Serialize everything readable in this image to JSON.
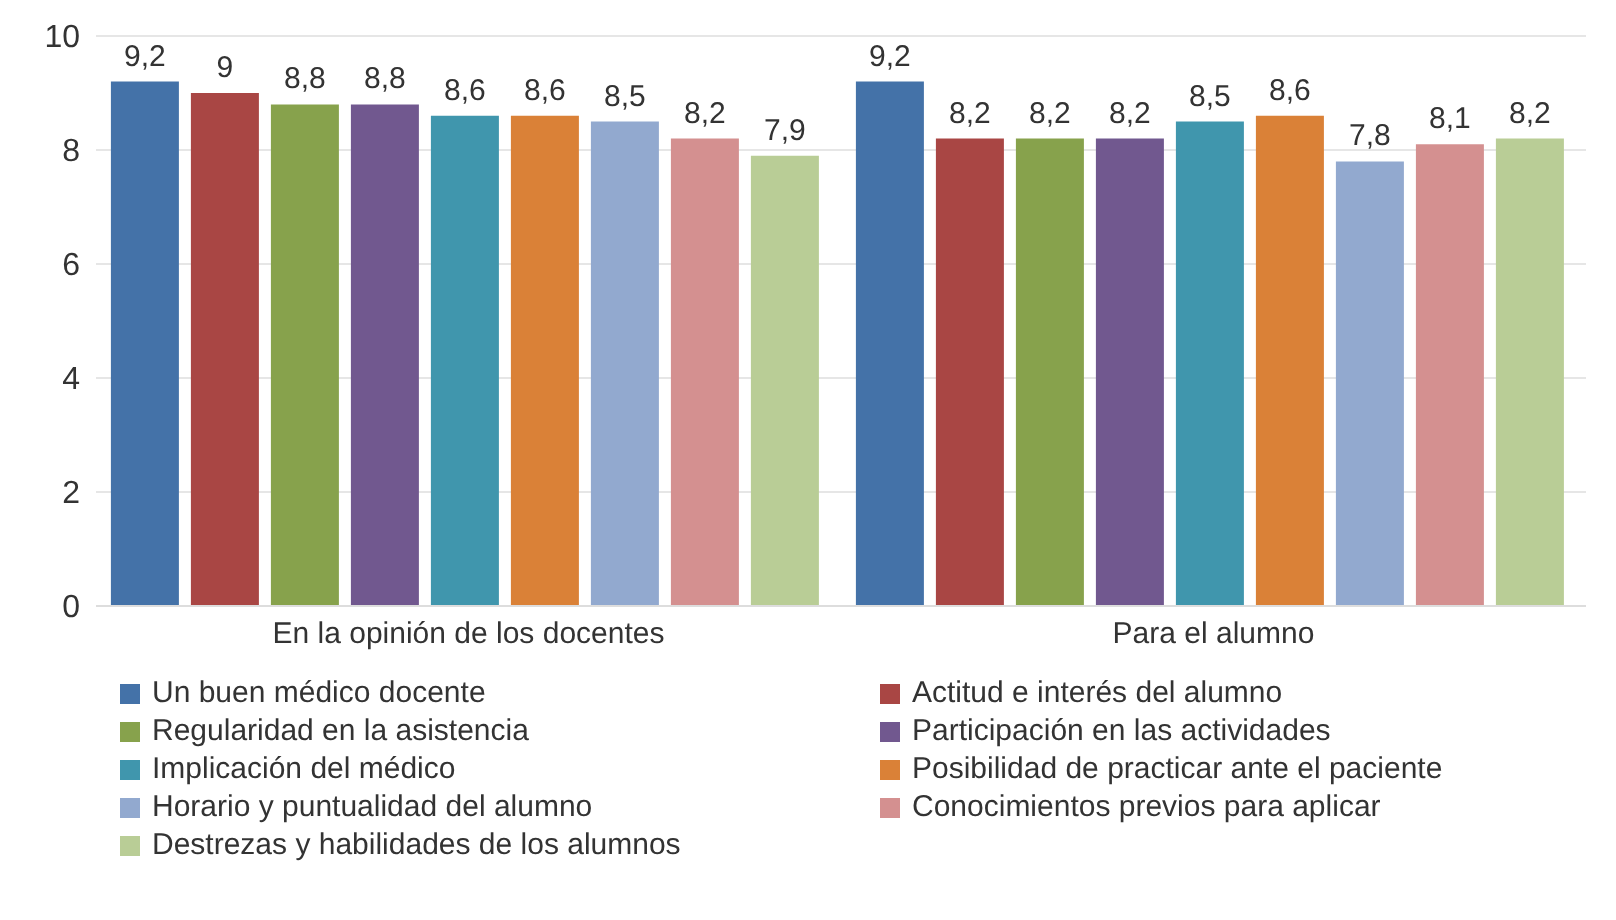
{
  "chart_data": {
    "type": "bar",
    "categories": [
      "En la opinión de los docentes",
      "Para el alumno"
    ],
    "series": [
      {
        "name": "Un buen médico docente",
        "color": "#4472a8",
        "values": [
          9.2,
          9.2
        ],
        "value_labels": [
          "9,2",
          "9,2"
        ]
      },
      {
        "name": "Actitud e interés del alumno",
        "color": "#a94644",
        "values": [
          9,
          8.2
        ],
        "value_labels": [
          "9",
          "8,2"
        ]
      },
      {
        "name": "Regularidad en la asistencia",
        "color": "#87a24c",
        "values": [
          8.8,
          8.2
        ],
        "value_labels": [
          "8,8",
          "8,2"
        ]
      },
      {
        "name": "Participación en las actividades",
        "color": "#71588f",
        "values": [
          8.8,
          8.2
        ],
        "value_labels": [
          "8,8",
          "8,2"
        ]
      },
      {
        "name": "Implicación del médico",
        "color": "#4096ad",
        "values": [
          8.6,
          8.5
        ],
        "value_labels": [
          "8,6",
          "8,5"
        ]
      },
      {
        "name": "Posibilidad de practicar ante el paciente",
        "color": "#da8137",
        "values": [
          8.6,
          8.6
        ],
        "value_labels": [
          "8,6",
          "8,6"
        ]
      },
      {
        "name": "Horario y puntualidad del alumno",
        "color": "#92a9cf",
        "values": [
          8.5,
          7.8
        ],
        "value_labels": [
          "8,5",
          "7,8"
        ]
      },
      {
        "name": "Conocimientos previos para aplicar",
        "color": "#d49090",
        "values": [
          8.2,
          8.1
        ],
        "value_labels": [
          "8,2",
          "8,1"
        ]
      },
      {
        "name": "Destrezas y habilidades de los alumnos",
        "color": "#b9cd96",
        "values": [
          7.9,
          8.2
        ],
        "value_labels": [
          "7,9",
          "8,2"
        ]
      }
    ],
    "ylim": [
      0,
      10
    ],
    "yticks": [
      0,
      2,
      4,
      6,
      8,
      10
    ],
    "grid": "y",
    "legend": "bottom"
  }
}
